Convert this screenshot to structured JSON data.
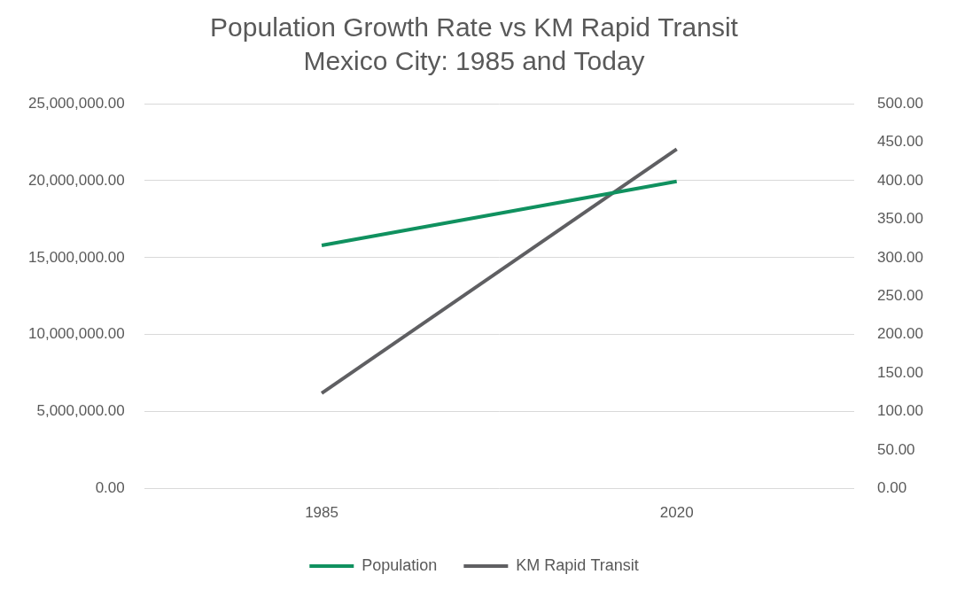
{
  "chart_data": {
    "type": "line",
    "title": [
      "Population Growth Rate vs KM Rapid Transit",
      "Mexico City: 1985 and Today"
    ],
    "categories": [
      "1985",
      "2020"
    ],
    "series": [
      {
        "name": "Population",
        "color": "#10915f",
        "values": [
          15800000,
          19950000
        ],
        "marker": "none"
      },
      {
        "name": "KM Rapid Transit",
        "color": "#5f5f62",
        "values": [
          124,
          441
        ],
        "axis": "y2",
        "marker": "none"
      }
    ],
    "ylim": [
      0,
      25000000
    ],
    "yticks": [
      {
        "value": 0,
        "label": "0.00"
      },
      {
        "value": 5000000,
        "label": "5,000,000.00"
      },
      {
        "value": 10000000,
        "label": "10,000,000.00"
      },
      {
        "value": 15000000,
        "label": "15,000,000.00"
      },
      {
        "value": 20000000,
        "label": "20,000,000.00"
      },
      {
        "value": 25000000,
        "label": "25,000,000.00"
      }
    ],
    "y2lim": [
      0,
      500
    ],
    "y2ticks": [
      {
        "value": 0,
        "label": "0.00"
      },
      {
        "value": 50,
        "label": "50.00"
      },
      {
        "value": 100,
        "label": "100.00"
      },
      {
        "value": 150,
        "label": "150.00"
      },
      {
        "value": 200,
        "label": "200.00"
      },
      {
        "value": 250,
        "label": "250.00"
      },
      {
        "value": 300,
        "label": "300.00"
      },
      {
        "value": 350,
        "label": "350.00"
      },
      {
        "value": 400,
        "label": "400.00"
      },
      {
        "value": 450,
        "label": "450.00"
      },
      {
        "value": 500,
        "label": "500.00"
      }
    ],
    "grid": true,
    "legend": "bottom"
  }
}
